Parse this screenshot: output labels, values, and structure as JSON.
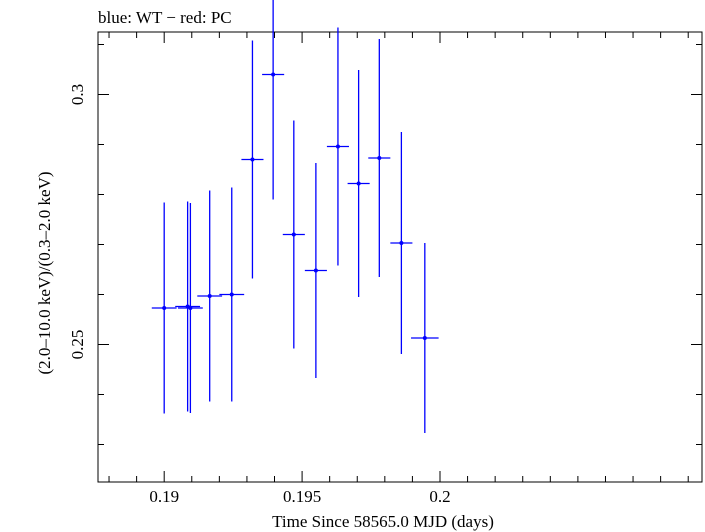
{
  "chart_data": {
    "type": "scatter",
    "title": "blue: WT − red: PC",
    "xlabel": "Time Since 58565.0 MJD (days)",
    "ylabel": "(2.0–10.0 keV)/(0.3–2.0 keV)",
    "xlim": [
      0.1876,
      0.2095
    ],
    "ylim": [
      0.2225,
      0.3125
    ],
    "x_ticks": [
      0.19,
      0.195,
      0.2
    ],
    "x_tick_labels": [
      "0.19",
      "0.195",
      "0.2"
    ],
    "y_ticks": [
      0.25,
      0.3
    ],
    "y_tick_labels": [
      "0.25",
      "0.3"
    ],
    "grid": false,
    "series": [
      {
        "color": "#0000ff",
        "points": [
          {
            "x": 0.19095,
            "xerr": 0.00045,
            "y": 0.2573,
            "yerr": 0.021
          },
          {
            "x": 0.19,
            "xerr": 0.00045,
            "y": 0.2573,
            "yerr": 0.0211
          },
          {
            "x": 0.19085,
            "xerr": 0.00045,
            "y": 0.2576,
            "yerr": 0.021
          },
          {
            "x": 0.19165,
            "xerr": 0.00045,
            "y": 0.2597,
            "yerr": 0.0211
          },
          {
            "x": 0.19245,
            "xerr": 0.00045,
            "y": 0.26,
            "yerr": 0.0214
          },
          {
            "x": 0.1932,
            "xerr": 0.0004,
            "y": 0.287,
            "yerr": 0.0238
          },
          {
            "x": 0.19395,
            "xerr": 0.0004,
            "y": 0.304,
            "yerr": 0.025
          },
          {
            "x": 0.1947,
            "xerr": 0.0004,
            "y": 0.272,
            "yerr": 0.0228
          },
          {
            "x": 0.1955,
            "xerr": 0.0004,
            "y": 0.2648,
            "yerr": 0.0215
          },
          {
            "x": 0.1963,
            "xerr": 0.0004,
            "y": 0.2896,
            "yerr": 0.0238
          },
          {
            "x": 0.19705,
            "xerr": 0.0004,
            "y": 0.2822,
            "yerr": 0.0227
          },
          {
            "x": 0.1978,
            "xerr": 0.0004,
            "y": 0.2873,
            "yerr": 0.0238
          },
          {
            "x": 0.1986,
            "xerr": 0.0004,
            "y": 0.2703,
            "yerr": 0.0222
          },
          {
            "x": 0.19945,
            "xerr": 0.0005,
            "y": 0.2513,
            "yerr": 0.019
          }
        ]
      }
    ]
  }
}
